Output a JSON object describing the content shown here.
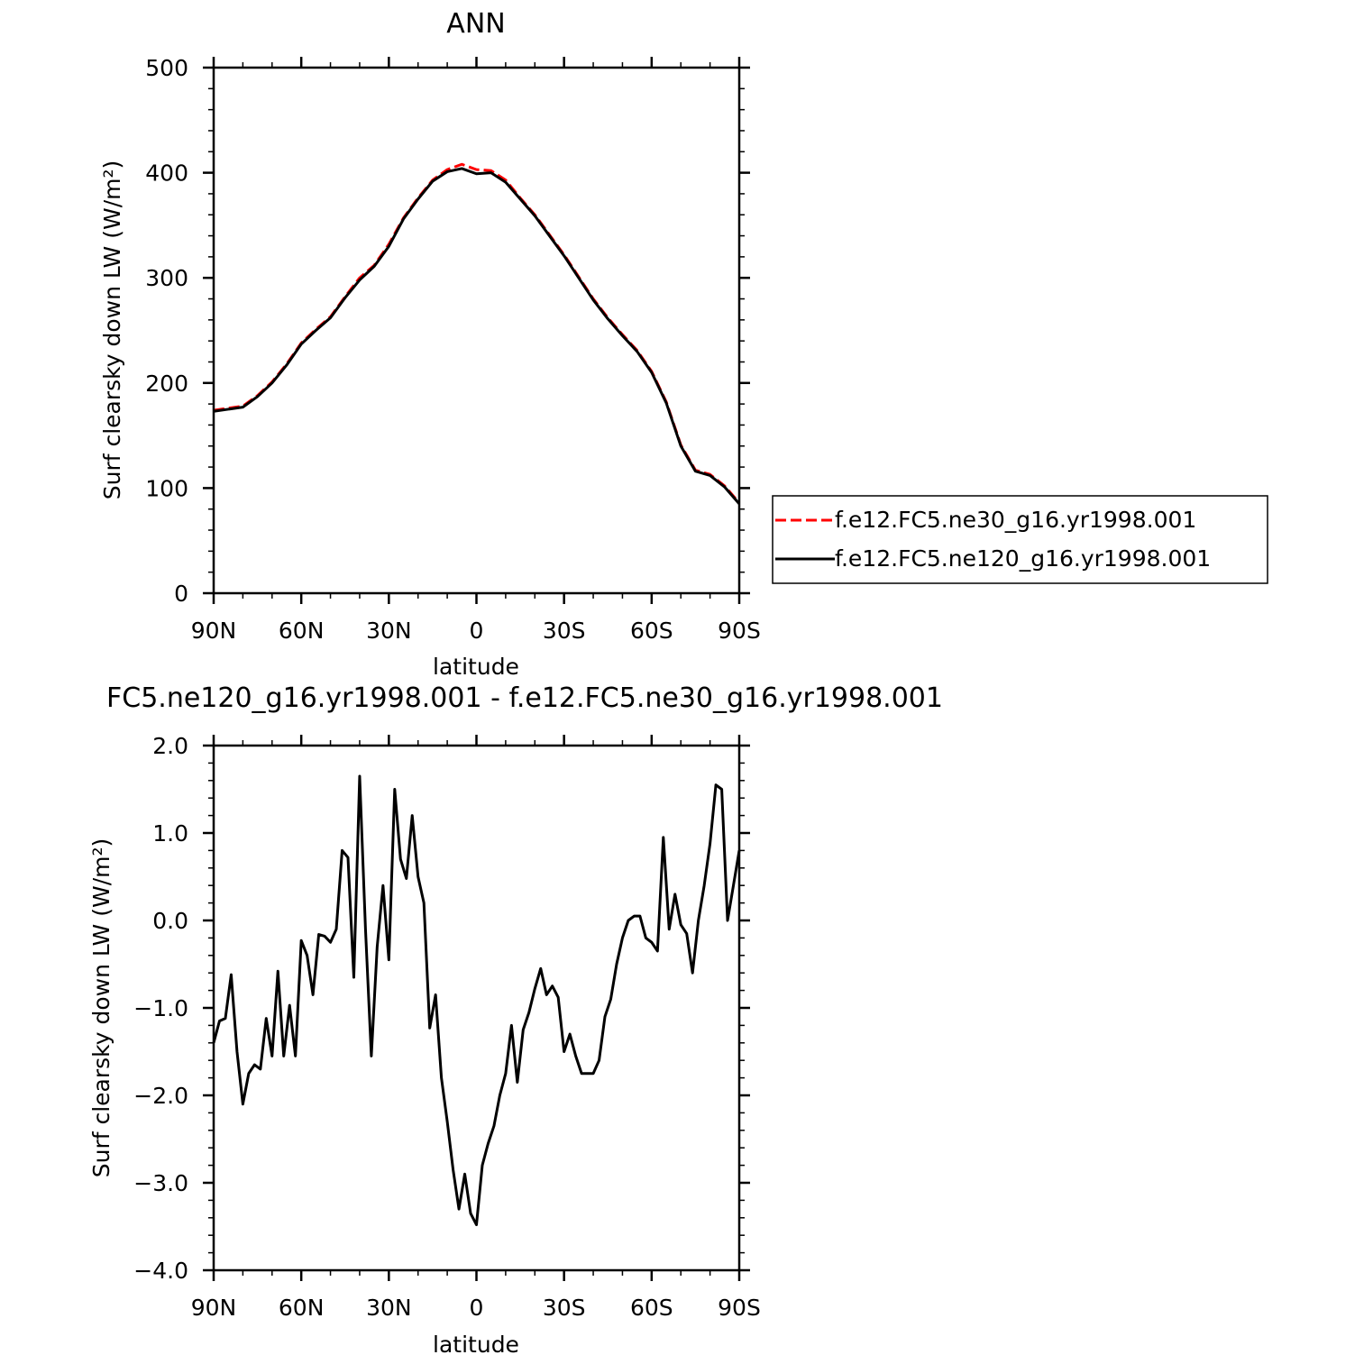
{
  "chart_data": [
    {
      "type": "line",
      "title": "ANN",
      "xlabel": "latitude",
      "ylabel": "Surf clearsky down LW (W/m²)",
      "xlim": [
        90,
        -90
      ],
      "ylim": [
        0,
        500
      ],
      "xticks": [
        90,
        60,
        30,
        0,
        -30,
        -60,
        -90
      ],
      "xtick_labels": [
        "90N",
        "60N",
        "30N",
        "0",
        "30S",
        "60S",
        "90S"
      ],
      "yticks": [
        0,
        100,
        200,
        300,
        400,
        500
      ],
      "ytick_labels": [
        "0",
        "100",
        "200",
        "300",
        "400",
        "500"
      ],
      "grid": false,
      "legend": "right, outside",
      "series": [
        {
          "name": "f.e12.FC5.ne30_g16.yr1998.001",
          "color": "#ff0000",
          "dash": "dashed",
          "x": [
            90,
            85,
            80,
            75,
            70,
            65,
            60,
            55,
            50,
            45,
            40,
            35,
            30,
            25,
            20,
            15,
            10,
            5,
            0,
            -5,
            -10,
            -15,
            -20,
            -25,
            -30,
            -35,
            -40,
            -45,
            -50,
            -55,
            -60,
            -65,
            -70,
            -75,
            -80,
            -85,
            -90
          ],
          "y": [
            174,
            176,
            178,
            188,
            201,
            218,
            238,
            251,
            263,
            282,
            300,
            312,
            332,
            357,
            376,
            393,
            403,
            408,
            403,
            402,
            393,
            376,
            360,
            341,
            322,
            301,
            280,
            262,
            246,
            231,
            211,
            182,
            141,
            117,
            113,
            102,
            86
          ]
        },
        {
          "name": "f.e12.FC5.ne120_g16.yr1998.001",
          "color": "#000000",
          "dash": "solid",
          "x": [
            90,
            85,
            80,
            75,
            70,
            65,
            60,
            55,
            50,
            45,
            40,
            35,
            30,
            25,
            20,
            15,
            10,
            5,
            0,
            -5,
            -10,
            -15,
            -20,
            -25,
            -30,
            -35,
            -40,
            -45,
            -50,
            -55,
            -60,
            -65,
            -70,
            -75,
            -80,
            -85,
            -90
          ],
          "y": [
            173,
            175,
            177,
            187,
            200,
            217,
            237,
            250,
            262,
            281,
            298,
            311,
            330,
            356,
            375,
            392,
            401,
            404,
            399,
            400,
            391,
            375,
            359,
            340,
            321,
            300,
            279,
            261,
            245,
            230,
            210,
            181,
            140,
            116,
            112,
            101,
            85
          ]
        }
      ]
    },
    {
      "type": "line",
      "title": "FC5.ne120_g16.yr1998.001 - f.e12.FC5.ne30_g16.yr1998.001",
      "xlabel": "latitude",
      "ylabel": "Surf clearsky down LW (W/m²)",
      "xlim": [
        90,
        -90
      ],
      "ylim": [
        -4,
        2
      ],
      "xticks": [
        90,
        60,
        30,
        0,
        -30,
        -60,
        -90
      ],
      "xtick_labels": [
        "90N",
        "60N",
        "30N",
        "0",
        "30S",
        "60S",
        "90S"
      ],
      "yticks": [
        -4,
        -3,
        -2,
        -1,
        0,
        1,
        2
      ],
      "ytick_labels": [
        "−4.0",
        "−3.0",
        "−2.0",
        "−1.0",
        "0.0",
        "1.0",
        "2.0"
      ],
      "grid": false,
      "series": [
        {
          "color": "#000000",
          "dash": "solid",
          "x": [
            90,
            88,
            86,
            84,
            82,
            80,
            78,
            76,
            74,
            72,
            70,
            68,
            66,
            64,
            62,
            60,
            58,
            56,
            54,
            52,
            50,
            48,
            46,
            44,
            42,
            40,
            38,
            36,
            34,
            32,
            30,
            28,
            26,
            24,
            22,
            20,
            18,
            16,
            14,
            12,
            10,
            8,
            6,
            4,
            2,
            0,
            -2,
            -4,
            -6,
            -8,
            -10,
            -12,
            -14,
            -16,
            -18,
            -20,
            -22,
            -24,
            -26,
            -28,
            -30,
            -32,
            -34,
            -36,
            -38,
            -40,
            -42,
            -44,
            -46,
            -48,
            -50,
            -52,
            -54,
            -56,
            -58,
            -60,
            -62,
            -64,
            -66,
            -68,
            -70,
            -72,
            -74,
            -76,
            -78,
            -80,
            -82,
            -84,
            -86,
            -88,
            -90
          ],
          "y": [
            -1.4,
            -1.15,
            -1.12,
            -0.62,
            -1.5,
            -2.1,
            -1.75,
            -1.65,
            -1.7,
            -1.12,
            -1.55,
            -0.58,
            -1.55,
            -0.97,
            -1.55,
            -0.23,
            -0.4,
            -0.85,
            -0.16,
            -0.18,
            -0.25,
            -0.1,
            0.8,
            0.72,
            -0.65,
            1.65,
            -0.1,
            -1.55,
            -0.3,
            0.4,
            -0.45,
            1.5,
            0.7,
            0.48,
            1.2,
            0.5,
            0.2,
            -1.23,
            -0.85,
            -1.8,
            -2.3,
            -2.85,
            -3.3,
            -2.9,
            -3.35,
            -3.48,
            -2.8,
            -2.55,
            -2.35,
            -2.0,
            -1.75,
            -1.2,
            -1.85,
            -1.25,
            -1.05,
            -0.78,
            -0.55,
            -0.85,
            -0.75,
            -0.88,
            -1.5,
            -1.3,
            -1.55,
            -1.75,
            -1.75,
            -1.75,
            -1.6,
            -1.1,
            -0.9,
            -0.5,
            -0.2,
            0.0,
            0.05,
            0.05,
            -0.2,
            -0.25,
            -0.35,
            0.95,
            -0.1,
            0.3,
            -0.05,
            -0.15,
            -0.6,
            0.0,
            0.4,
            0.88,
            1.55,
            1.5,
            0.0,
            0.4,
            0.8
          ]
        }
      ]
    }
  ]
}
